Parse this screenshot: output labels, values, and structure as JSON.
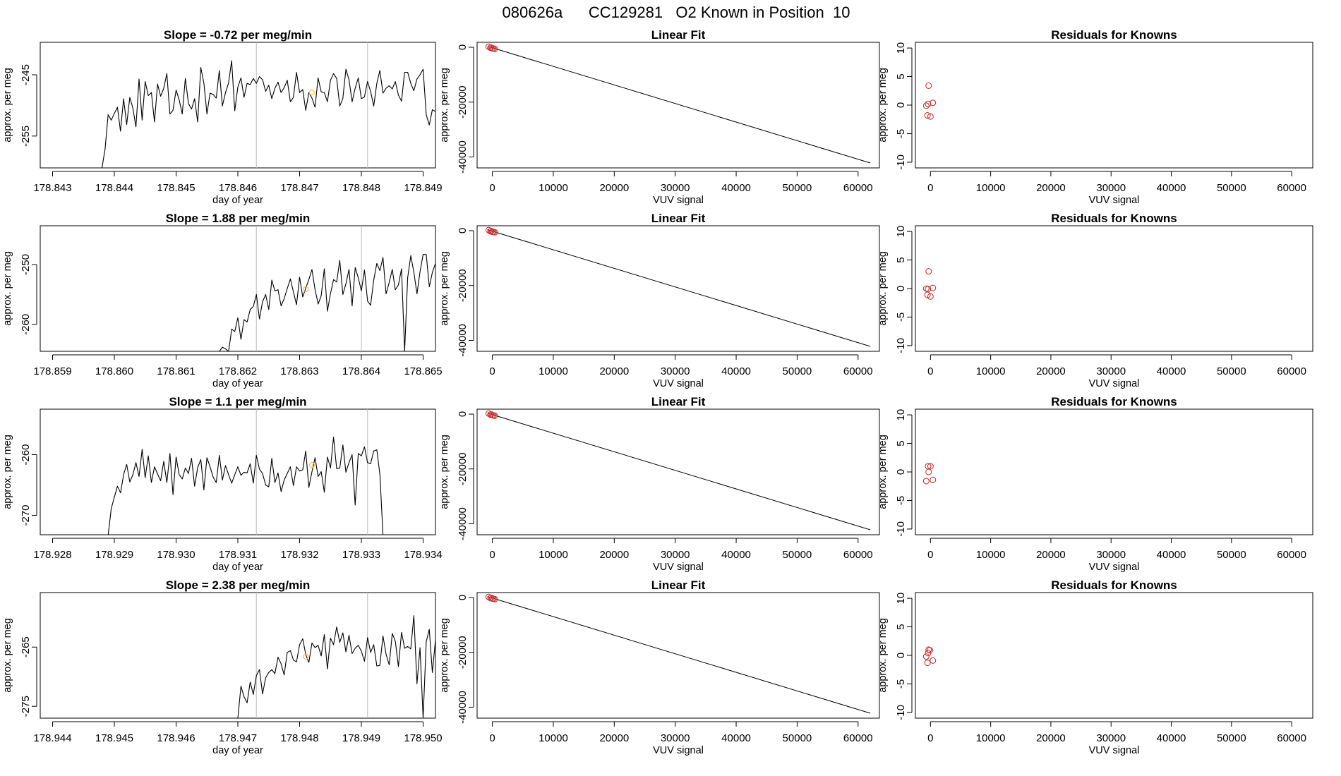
{
  "page_title": "080626a      CC129281   O2 Known in Position  10",
  "colors": {
    "trace": "#000000",
    "marker_guide": "#bbbbbb",
    "highlight_point": "#f5c242",
    "known_points": "#cc3333",
    "fit_line": "#000000"
  },
  "chart_data": [
    {
      "type": "line",
      "title": "Slope =  -0.72  per meg/min",
      "xlabel": "day of year",
      "ylabel": "approx. per meg",
      "xlim": [
        178.8428,
        178.8492
      ],
      "ylim": [
        -260.2,
        -239.7
      ],
      "xticks": [
        178.843,
        178.844,
        178.845,
        178.846,
        178.847,
        178.848,
        178.849
      ],
      "xtick_labels": [
        "178.843",
        "178.844",
        "178.845",
        "178.846",
        "178.847",
        "178.848",
        "178.849"
      ],
      "yticks": [
        -255,
        -245
      ],
      "ytick_labels": [
        "-255",
        "-245"
      ],
      "grid": false,
      "vlines": [
        178.8463,
        178.8481
      ],
      "x_start": 178.8438,
      "x_step": 5e-05,
      "y": [
        -260.2,
        -257.1,
        -251.5,
        -252.4,
        -251.3,
        -250.3,
        -254.2,
        -248.9,
        -253.1,
        -248.7,
        -250.4,
        -253.5,
        -245.7,
        -252.4,
        -246.1,
        -248.4,
        -247.9,
        -252.7,
        -246.5,
        -248.5,
        -247.2,
        -244.8,
        -251.4,
        -250.8,
        -247.5,
        -249.1,
        -251.4,
        -245.6,
        -249.7,
        -250.6,
        -248.9,
        -252.7,
        -243.8,
        -246.4,
        -251.4,
        -248.0,
        -248.2,
        -248.8,
        -244.3,
        -250.1,
        -247.9,
        -246.3,
        -242.7,
        -250.9,
        -247.0,
        -245.5,
        -248.7,
        -246.4,
        -246.6,
        -245.6,
        -246.4,
        -245.3,
        -245.8,
        -247.7,
        -246.7,
        -248.9,
        -247.2,
        -246.2,
        -247.9,
        -247.1,
        -245.9,
        -249.4,
        -248.7,
        -244.6,
        -247.9,
        -247.4,
        -250.8,
        -247.9,
        -248.8,
        -250.3,
        -245.5,
        -247.8,
        -247.9,
        -249.4,
        -245.9,
        -244.8,
        -245.6,
        -250.1,
        -248.9,
        -244.1,
        -245.8,
        -249.4,
        -247.2,
        -245.5,
        -248.9,
        -248.6,
        -246.1,
        -247.7,
        -250.1,
        -246.4,
        -244.3,
        -248.0,
        -247.2,
        -246.8,
        -247.3,
        -246.1,
        -248.3,
        -249.3,
        -244.6,
        -244.6,
        -246.4,
        -247.6,
        -245.7,
        -245.0,
        -244.1,
        -251.5,
        -253.2,
        -250.7,
        -251.0,
        -247.3,
        -246.9,
        -248.9,
        -246.7,
        -246.5,
        -247.5,
        -246.5,
        -245.9,
        -246.5,
        -247.1,
        -246.4,
        -245.1,
        -245.8,
        -244.1,
        -247.3,
        -244.5,
        -249.0,
        -250.7,
        -251.7,
        -246.5,
        -247.1,
        -246.9,
        -247.6,
        -247.8,
        -245.9,
        -253.8,
        -260.2
      ],
      "highlight": {
        "x": 178.8472,
        "y": -247.9
      }
    },
    {
      "type": "line",
      "title": "Linear Fit",
      "xlabel": "VUV signal",
      "ylabel": "approx. per meg",
      "xlim": [
        -2500,
        63500
      ],
      "ylim": [
        -44000,
        1800
      ],
      "xticks": [
        0,
        10000,
        20000,
        30000,
        40000,
        50000,
        60000
      ],
      "xtick_labels": [
        "0",
        "10000",
        "20000",
        "30000",
        "40000",
        "50000",
        "60000"
      ],
      "yticks": [
        -40000,
        -20000,
        0
      ],
      "ytick_labels": [
        "-40000",
        "-20000",
        "0"
      ],
      "grid": false,
      "points": [
        [
          -600,
          200
        ],
        [
          -300,
          -200
        ],
        [
          0,
          -400
        ],
        [
          200,
          -500
        ],
        [
          400,
          -600
        ],
        [
          -200,
          -100
        ]
      ],
      "fit_line": [
        [
          -800,
          350
        ],
        [
          62000,
          -42200
        ]
      ]
    },
    {
      "type": "scatter",
      "title": "Residuals for Knowns",
      "xlabel": "VUV signal",
      "ylabel": "approx. per meg",
      "xlim": [
        -2500,
        63500
      ],
      "ylim": [
        -11,
        11
      ],
      "xticks": [
        0,
        10000,
        20000,
        30000,
        40000,
        50000,
        60000
      ],
      "xtick_labels": [
        "0",
        "10000",
        "20000",
        "30000",
        "40000",
        "50000",
        "60000"
      ],
      "yticks": [
        -10,
        -5,
        0,
        5,
        10
      ],
      "ytick_labels": [
        "-10",
        "-5",
        "0",
        "5",
        "10"
      ],
      "grid": false,
      "points": [
        [
          -300,
          3.4
        ],
        [
          -700,
          -0.1
        ],
        [
          -400,
          0.2
        ],
        [
          400,
          0.4
        ],
        [
          -500,
          -1.8
        ],
        [
          0,
          -2.0
        ]
      ]
    },
    {
      "type": "line",
      "title": "Slope =  1.88  per meg/min",
      "xlabel": "day of year",
      "ylabel": "approx. per meg",
      "xlim": [
        178.8588,
        178.8652
      ],
      "ylim": [
        -264.5,
        -243.5
      ],
      "xticks": [
        178.859,
        178.86,
        178.861,
        178.862,
        178.863,
        178.864,
        178.865
      ],
      "xtick_labels": [
        "178.859",
        "178.860",
        "178.861",
        "178.862",
        "178.863",
        "178.864",
        "178.865"
      ],
      "yticks": [
        -260,
        -250
      ],
      "ytick_labels": [
        "-260",
        "-250"
      ],
      "grid": false,
      "vlines": [
        178.8623,
        178.864
      ],
      "x_start": 178.8617,
      "x_step": 5e-05,
      "y": [
        -264.5,
        -263.8,
        -264.1,
        -264.5,
        -260.8,
        -261.2,
        -258.9,
        -262.5,
        -259.2,
        -259.6,
        -257.5,
        -257.0,
        -255.0,
        -259.1,
        -256.2,
        -255.0,
        -257.5,
        -252.6,
        -254.4,
        -254.2,
        -256.9,
        -255.7,
        -254.0,
        -252.4,
        -254.6,
        -256.7,
        -252.1,
        -255.4,
        -253.9,
        -252.5,
        -250.8,
        -254.2,
        -256.6,
        -255.2,
        -250.7,
        -257.8,
        -254.8,
        -252.5,
        -252.9,
        -249.3,
        -255.0,
        -253.2,
        -250.8,
        -256.9,
        -250.5,
        -252.2,
        -254.4,
        -250.9,
        -256.1,
        -256.8,
        -252.6,
        -249.8,
        -251.0,
        -248.8,
        -254.9,
        -253.0,
        -250.8,
        -254.2,
        -253.4,
        -250.7,
        -264.5,
        -252.2,
        -248.5,
        -251.3,
        -254.9,
        -251.2,
        -248.3,
        -248.3,
        -253.7,
        -251.3,
        -249.8,
        -252.9,
        -252.1,
        -249.1,
        -249.3,
        -251.3,
        -248.2,
        -255.7,
        -250.6,
        -251.6,
        -248.6,
        -249.5,
        -255.5,
        -264.5
      ],
      "highlight": {
        "x": 178.8631,
        "y": -254.1
      }
    },
    {
      "type": "line",
      "title": "Linear Fit",
      "xlabel": "VUV signal",
      "ylabel": "approx. per meg",
      "xlim": [
        -2500,
        63500
      ],
      "ylim": [
        -44000,
        1800
      ],
      "xticks": [
        0,
        10000,
        20000,
        30000,
        40000,
        50000,
        60000
      ],
      "xtick_labels": [
        "0",
        "10000",
        "20000",
        "30000",
        "40000",
        "50000",
        "60000"
      ],
      "yticks": [
        -40000,
        -20000,
        0
      ],
      "ytick_labels": [
        "-40000",
        "-20000",
        "0"
      ],
      "grid": false,
      "points": [
        [
          -600,
          200
        ],
        [
          -300,
          -200
        ],
        [
          0,
          -400
        ],
        [
          200,
          -500
        ],
        [
          400,
          -600
        ],
        [
          -200,
          -100
        ]
      ],
      "fit_line": [
        [
          -800,
          350
        ],
        [
          62000,
          -42200
        ]
      ]
    },
    {
      "type": "scatter",
      "title": "Residuals for Knowns",
      "xlabel": "VUV signal",
      "ylabel": "approx. per meg",
      "xlim": [
        -2500,
        63500
      ],
      "ylim": [
        -11,
        11
      ],
      "xticks": [
        0,
        10000,
        20000,
        30000,
        40000,
        50000,
        60000
      ],
      "xtick_labels": [
        "0",
        "10000",
        "20000",
        "30000",
        "40000",
        "50000",
        "60000"
      ],
      "yticks": [
        -10,
        -5,
        0,
        5,
        10
      ],
      "ytick_labels": [
        "-10",
        "-5",
        "0",
        "5",
        "10"
      ],
      "grid": false,
      "points": [
        [
          -300,
          3.0
        ],
        [
          -700,
          0.0
        ],
        [
          -400,
          -0.1
        ],
        [
          400,
          0.1
        ],
        [
          -500,
          -1.1
        ],
        [
          0,
          -1.4
        ]
      ]
    },
    {
      "type": "line",
      "title": "Slope =  1.1  per meg/min",
      "xlabel": "day of year",
      "ylabel": "approx. per meg",
      "xlim": [
        178.9278,
        178.9342
      ],
      "ylim": [
        -273.2,
        -252.5
      ],
      "xticks": [
        178.928,
        178.929,
        178.93,
        178.931,
        178.932,
        178.933,
        178.934
      ],
      "xtick_labels": [
        "178.928",
        "178.929",
        "178.930",
        "178.931",
        "178.932",
        "178.933",
        "178.934"
      ],
      "yticks": [
        -270,
        -260
      ],
      "ytick_labels": [
        "-270",
        "-260"
      ],
      "grid": false,
      "vlines": [
        178.9313,
        178.9331
      ],
      "x_start": 178.9289,
      "x_step": 5e-05,
      "y": [
        -273.2,
        -268.9,
        -267.0,
        -265.2,
        -266.3,
        -263.3,
        -261.6,
        -264.5,
        -263.3,
        -261.3,
        -263.6,
        -259.1,
        -263.8,
        -260.2,
        -264.6,
        -262.0,
        -263.2,
        -264.3,
        -261.1,
        -264.6,
        -259.8,
        -266.6,
        -260.4,
        -263.3,
        -264.0,
        -262.2,
        -263.1,
        -260.6,
        -265.2,
        -262.1,
        -260.8,
        -265.8,
        -260.5,
        -262.0,
        -263.7,
        -264.6,
        -260.1,
        -264.2,
        -261.8,
        -263.3,
        -264.7,
        -263.3,
        -262.0,
        -263.4,
        -262.9,
        -263.0,
        -261.5,
        -264.7,
        -260.1,
        -262.4,
        -263.1,
        -265.0,
        -265.3,
        -260.6,
        -264.6,
        -263.0,
        -266.1,
        -264.2,
        -263.1,
        -262.0,
        -265.1,
        -262.0,
        -262.7,
        -262.5,
        -259.4,
        -265.4,
        -262.8,
        -260.5,
        -263.6,
        -262.8,
        -266.2,
        -260.4,
        -262.2,
        -257.1,
        -262.3,
        -262.2,
        -258.4,
        -262.9,
        -261.3,
        -260.0,
        -268.3,
        -259.8,
        -260.2,
        -258.7,
        -261.3,
        -261.5,
        -259.4,
        -259.2,
        -263.3,
        -273.2
      ],
      "highlight": {
        "x": 178.9322,
        "y": -261.7
      }
    },
    {
      "type": "line",
      "title": "Linear Fit",
      "xlabel": "VUV signal",
      "ylabel": "approx. per meg",
      "xlim": [
        -2500,
        63500
      ],
      "ylim": [
        -44000,
        1800
      ],
      "xticks": [
        0,
        10000,
        20000,
        30000,
        40000,
        50000,
        60000
      ],
      "xtick_labels": [
        "0",
        "10000",
        "20000",
        "30000",
        "40000",
        "50000",
        "60000"
      ],
      "yticks": [
        -40000,
        -20000,
        0
      ],
      "ytick_labels": [
        "-40000",
        "-20000",
        "0"
      ],
      "grid": false,
      "points": [
        [
          -600,
          200
        ],
        [
          -300,
          -200
        ],
        [
          0,
          -400
        ],
        [
          200,
          -500
        ],
        [
          400,
          -600
        ],
        [
          -200,
          -100
        ]
      ],
      "fit_line": [
        [
          -800,
          350
        ],
        [
          62000,
          -42200
        ]
      ]
    },
    {
      "type": "scatter",
      "title": "Residuals for Knowns",
      "xlabel": "VUV signal",
      "ylabel": "approx. per meg",
      "xlim": [
        -2500,
        63500
      ],
      "ylim": [
        -11,
        11
      ],
      "xticks": [
        0,
        10000,
        20000,
        30000,
        40000,
        50000,
        60000
      ],
      "xtick_labels": [
        "0",
        "10000",
        "20000",
        "30000",
        "40000",
        "50000",
        "60000"
      ],
      "yticks": [
        -10,
        -5,
        0,
        5,
        10
      ],
      "ytick_labels": [
        "-10",
        "-5",
        "0",
        "5",
        "10"
      ],
      "grid": false,
      "points": [
        [
          -400,
          1.0
        ],
        [
          0,
          1.0
        ],
        [
          -300,
          0.0
        ],
        [
          -700,
          -1.6
        ],
        [
          400,
          -1.4
        ]
      ]
    },
    {
      "type": "line",
      "title": "Slope =  2.38  per meg/min",
      "xlabel": "day of year",
      "ylabel": "approx. per meg",
      "xlim": [
        178.9438,
        178.9502
      ],
      "ylim": [
        -277.0,
        -255.8
      ],
      "xticks": [
        178.944,
        178.945,
        178.946,
        178.947,
        178.948,
        178.949,
        178.95
      ],
      "xtick_labels": [
        "178.944",
        "178.945",
        "178.946",
        "178.947",
        "178.948",
        "178.949",
        "178.950"
      ],
      "yticks": [
        -275,
        -265
      ],
      "ytick_labels": [
        "-275",
        "-265"
      ],
      "grid": false,
      "vlines": [
        178.9473,
        178.9491
      ],
      "x_start": 178.947,
      "x_step": 5e-05,
      "y": [
        -277.0,
        -271.6,
        -273.4,
        -274.4,
        -270.9,
        -273.0,
        -269.8,
        -268.8,
        -272.9,
        -270.2,
        -269.3,
        -268.8,
        -269.5,
        -266.7,
        -267.8,
        -269.7,
        -265.9,
        -265.6,
        -267.2,
        -267.5,
        -264.6,
        -263.6,
        -266.3,
        -267.6,
        -264.3,
        -265.1,
        -264.7,
        -266.5,
        -262.9,
        -268.7,
        -263.5,
        -264.6,
        -261.6,
        -264.2,
        -262.6,
        -265.8,
        -263.0,
        -266.1,
        -265.2,
        -264.7,
        -265.7,
        -267.4,
        -263.4,
        -265.9,
        -264.6,
        -268.2,
        -268.1,
        -263.1,
        -266.2,
        -268.0,
        -262.7,
        -264.0,
        -268.3,
        -262.5,
        -265.2,
        -264.9,
        -265.3,
        -259.7,
        -271.2,
        -265.1,
        -277.0,
        -264.1,
        -262.0,
        -269.3,
        -263.8,
        -266.1,
        -271.0,
        -260.3,
        -267.8,
        -262.4,
        -264.9,
        -265.1,
        -262.6,
        -268.7,
        -262.5,
        -267.7,
        -268.0,
        -277.0
      ],
      "highlight": {
        "x": 178.9481,
        "y": -266.6
      }
    },
    {
      "type": "line",
      "title": "Linear Fit",
      "xlabel": "VUV signal",
      "ylabel": "approx. per meg",
      "xlim": [
        -2500,
        63500
      ],
      "ylim": [
        -44000,
        1800
      ],
      "xticks": [
        0,
        10000,
        20000,
        30000,
        40000,
        50000,
        60000
      ],
      "xtick_labels": [
        "0",
        "10000",
        "20000",
        "30000",
        "40000",
        "50000",
        "60000"
      ],
      "yticks": [
        -40000,
        -20000,
        0
      ],
      "ytick_labels": [
        "-40000",
        "-20000",
        "0"
      ],
      "grid": false,
      "points": [
        [
          -600,
          200
        ],
        [
          -300,
          -200
        ],
        [
          0,
          -400
        ],
        [
          200,
          -500
        ],
        [
          400,
          -600
        ],
        [
          -200,
          -100
        ]
      ],
      "fit_line": [
        [
          -800,
          350
        ],
        [
          62000,
          -42200
        ]
      ]
    },
    {
      "type": "scatter",
      "title": "Residuals for Knowns",
      "xlabel": "VUV signal",
      "ylabel": "approx. per meg",
      "xlim": [
        -2500,
        63500
      ],
      "ylim": [
        -11,
        11
      ],
      "xticks": [
        0,
        10000,
        20000,
        30000,
        40000,
        50000,
        60000
      ],
      "xtick_labels": [
        "0",
        "10000",
        "20000",
        "30000",
        "40000",
        "50000",
        "60000"
      ],
      "yticks": [
        -10,
        -5,
        0,
        5,
        10
      ],
      "ytick_labels": [
        "-10",
        "-5",
        "0",
        "5",
        "10"
      ],
      "grid": false,
      "points": [
        [
          -300,
          1.0
        ],
        [
          -100,
          0.9
        ],
        [
          -400,
          0.4
        ],
        [
          -700,
          -0.2
        ],
        [
          400,
          -0.9
        ],
        [
          -500,
          -1.3
        ]
      ]
    }
  ]
}
